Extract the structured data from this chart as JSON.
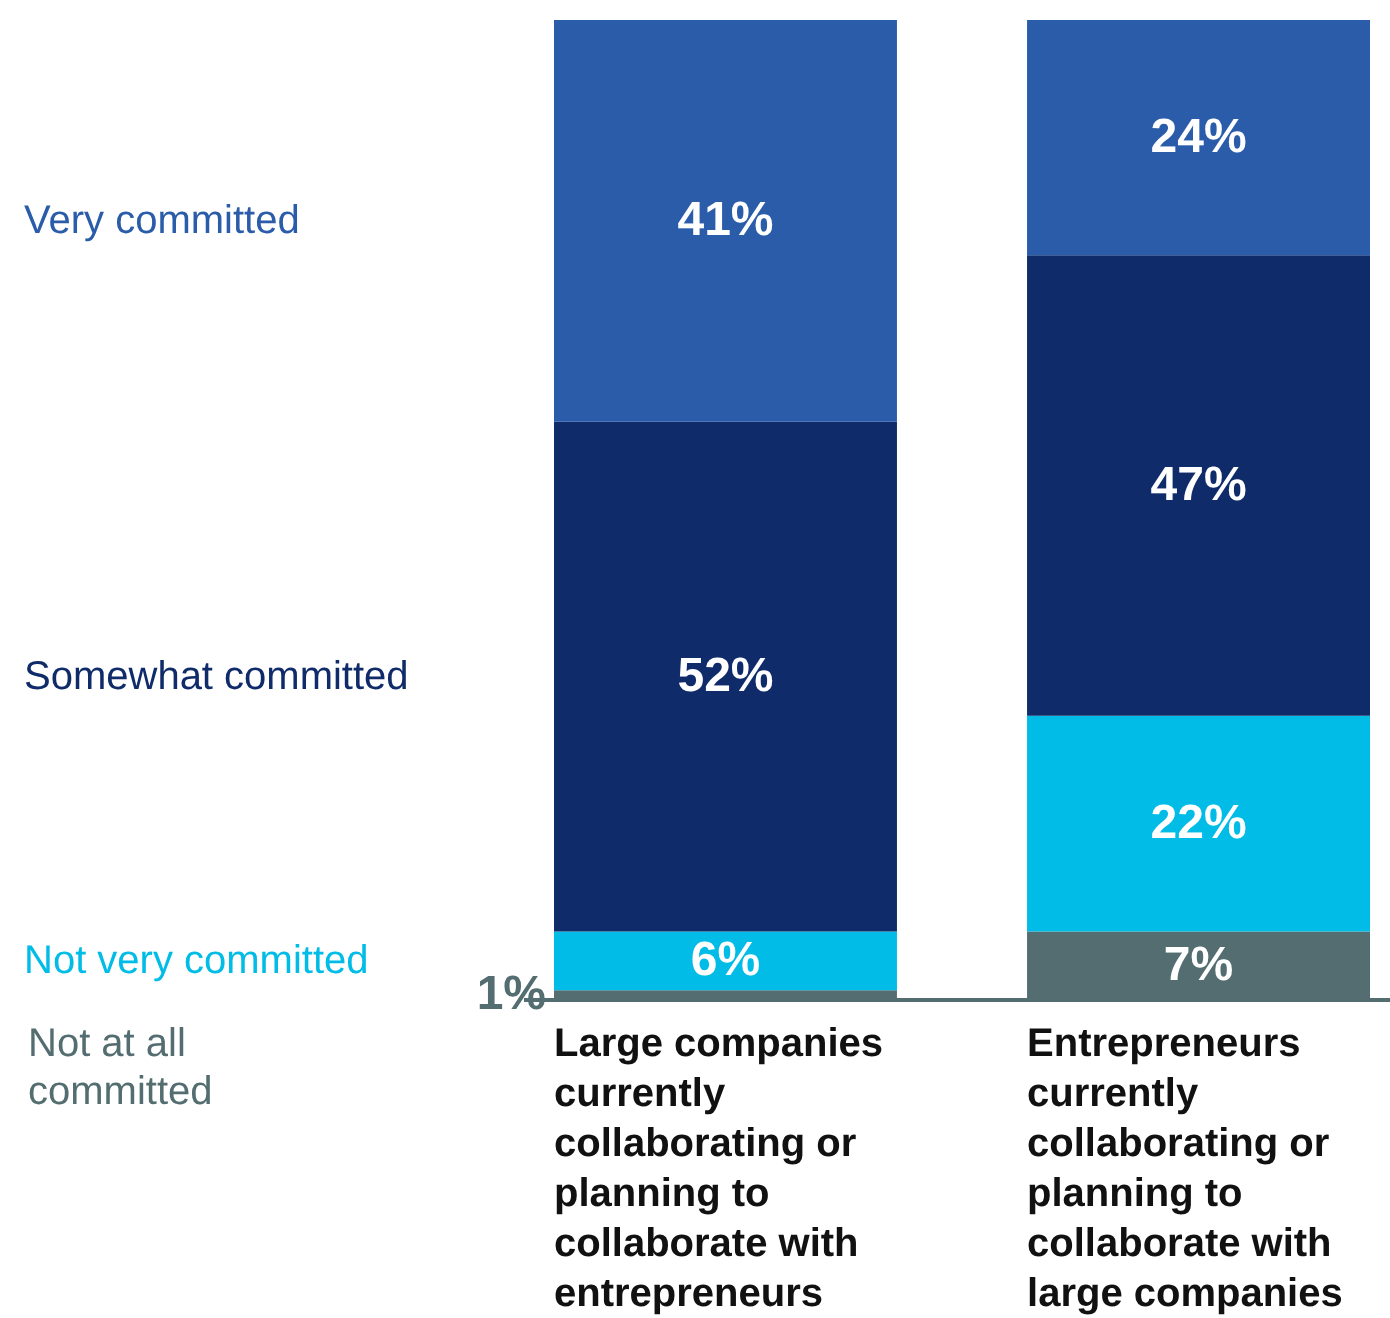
{
  "chart_data": {
    "type": "bar",
    "stacked": true,
    "categories": [
      "Large companies currently collaborating or planning to collaborate with entrepreneurs",
      "Entrepreneurs currently collaborating or planning to collaborate with large companies"
    ],
    "series": [
      {
        "name": "Not at all committed",
        "color": "#546d70",
        "values": [
          1,
          7
        ],
        "value_labels": [
          "1%",
          "7%"
        ]
      },
      {
        "name": "Not very committed",
        "color": "#00bce6",
        "values": [
          6,
          22
        ],
        "value_labels": [
          "6%",
          "22%"
        ]
      },
      {
        "name": "Somewhat committed",
        "color": "#0f2b69",
        "values": [
          52,
          47
        ],
        "value_labels": [
          "52%",
          "47%"
        ]
      },
      {
        "name": "Very committed",
        "color": "#2a5caa",
        "values": [
          41,
          24
        ],
        "value_labels": [
          "41%",
          "24%"
        ]
      }
    ]
  }
}
